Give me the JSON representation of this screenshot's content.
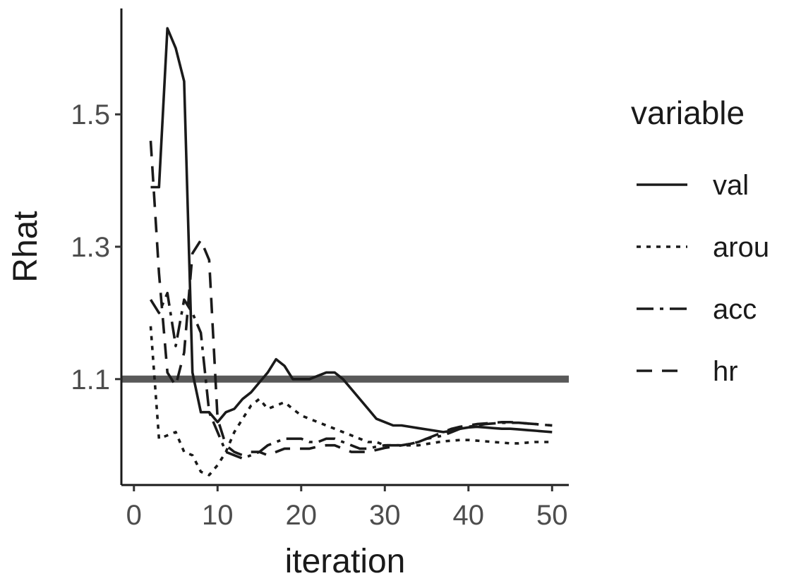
{
  "chart_data": {
    "type": "line",
    "xlabel": "iteration",
    "ylabel": "Rhat",
    "xlim": [
      -1.5,
      52
    ],
    "ylim": [
      0.94,
      1.66
    ],
    "x_ticks": [
      0,
      10,
      20,
      30,
      40,
      50
    ],
    "y_ticks": [
      1.1,
      1.3,
      1.5
    ],
    "grid": false,
    "legend": {
      "title": "variable",
      "position": "right"
    },
    "reference_line": {
      "y": 1.1,
      "color": "#595959"
    },
    "series": [
      {
        "name": "val",
        "style": "solid",
        "color": "#1a1a1a",
        "x": [
          2,
          3,
          4,
          5,
          6,
          7,
          8,
          9,
          10,
          11,
          12,
          13,
          14,
          15,
          16,
          17,
          18,
          19,
          20,
          21,
          22,
          23,
          24,
          25,
          26,
          27,
          28,
          29,
          30,
          31,
          32,
          33,
          34,
          35,
          36,
          37,
          38,
          39,
          40,
          41,
          42,
          43,
          44,
          45,
          46,
          47,
          48,
          49,
          50
        ],
        "values": [
          1.39,
          1.39,
          1.63,
          1.6,
          1.55,
          1.11,
          1.05,
          1.05,
          1.035,
          1.05,
          1.055,
          1.07,
          1.08,
          1.095,
          1.11,
          1.13,
          1.12,
          1.1,
          1.1,
          1.1,
          1.105,
          1.11,
          1.11,
          1.1,
          1.085,
          1.07,
          1.055,
          1.04,
          1.035,
          1.03,
          1.03,
          1.028,
          1.026,
          1.024,
          1.022,
          1.02,
          1.022,
          1.025,
          1.027,
          1.028,
          1.027,
          1.026,
          1.025,
          1.025,
          1.024,
          1.023,
          1.022,
          1.021,
          1.02
        ]
      },
      {
        "name": "arou",
        "style": "dotted",
        "color": "#1a1a1a",
        "x": [
          2,
          3,
          4,
          5,
          6,
          7,
          8,
          9,
          10,
          11,
          12,
          13,
          14,
          15,
          16,
          17,
          18,
          19,
          20,
          21,
          22,
          23,
          24,
          25,
          26,
          27,
          28,
          29,
          30,
          31,
          32,
          33,
          34,
          35,
          36,
          37,
          38,
          39,
          40,
          41,
          42,
          43,
          44,
          45,
          46,
          47,
          48,
          49,
          50
        ],
        "values": [
          1.18,
          1.01,
          1.015,
          1.02,
          0.99,
          0.985,
          0.96,
          0.955,
          0.97,
          0.99,
          1.02,
          1.04,
          1.06,
          1.07,
          1.055,
          1.06,
          1.065,
          1.055,
          1.045,
          1.04,
          1.035,
          1.03,
          1.025,
          1.02,
          1.015,
          1.01,
          1.005,
          1.005,
          1.0,
          1.0,
          1.0,
          1.0,
          1.0,
          1.002,
          1.004,
          1.006,
          1.007,
          1.008,
          1.008,
          1.007,
          1.006,
          1.005,
          1.004,
          1.003,
          1.003,
          1.004,
          1.005,
          1.005,
          1.005
        ]
      },
      {
        "name": "acc",
        "style": "dashdot",
        "color": "#1a1a1a",
        "x": [
          2,
          3,
          4,
          5,
          6,
          7,
          8,
          9,
          10,
          11,
          12,
          13,
          14,
          15,
          16,
          17,
          18,
          19,
          20,
          21,
          22,
          23,
          24,
          25,
          26,
          27,
          28,
          29,
          30,
          31,
          32,
          33,
          34,
          35,
          36,
          37,
          38,
          39,
          40,
          41,
          42,
          43,
          44,
          45,
          46,
          47,
          48,
          49,
          50
        ],
        "values": [
          1.22,
          1.2,
          1.23,
          1.15,
          1.22,
          1.2,
          1.17,
          1.05,
          1.02,
          0.99,
          0.985,
          0.98,
          0.985,
          0.99,
          1.0,
          1.005,
          1.01,
          1.01,
          1.01,
          1.005,
          1.005,
          1.01,
          1.01,
          1.005,
          1.0,
          0.995,
          0.995,
          0.998,
          1.0,
          1.0,
          1.0,
          1.002,
          1.005,
          1.01,
          1.012,
          1.015,
          1.02,
          1.025,
          1.028,
          1.03,
          1.032,
          1.033,
          1.034,
          1.034,
          1.034,
          1.033,
          1.032,
          1.031,
          1.03
        ]
      },
      {
        "name": "hr",
        "style": "dashed",
        "color": "#1a1a1a",
        "x": [
          2,
          3,
          4,
          5,
          6,
          7,
          8,
          9,
          10,
          11,
          12,
          13,
          14,
          15,
          16,
          17,
          18,
          19,
          20,
          21,
          22,
          23,
          24,
          25,
          26,
          27,
          28,
          29,
          30,
          31,
          32,
          33,
          34,
          35,
          36,
          37,
          38,
          39,
          40,
          41,
          42,
          43,
          44,
          45,
          46,
          47,
          48,
          49,
          50
        ],
        "values": [
          1.46,
          1.26,
          1.11,
          1.09,
          1.14,
          1.29,
          1.31,
          1.28,
          1.04,
          1.0,
          0.99,
          0.985,
          0.99,
          0.99,
          0.985,
          0.99,
          0.995,
          0.995,
          0.995,
          0.995,
          0.998,
          1.0,
          1.0,
          0.995,
          0.99,
          0.99,
          0.99,
          0.993,
          0.996,
          0.998,
          1.0,
          1.002,
          1.005,
          1.01,
          1.015,
          1.02,
          1.025,
          1.028,
          1.03,
          1.032,
          1.033,
          1.034,
          1.035,
          1.035,
          1.034,
          1.033,
          1.032,
          1.031,
          1.03
        ]
      }
    ]
  }
}
